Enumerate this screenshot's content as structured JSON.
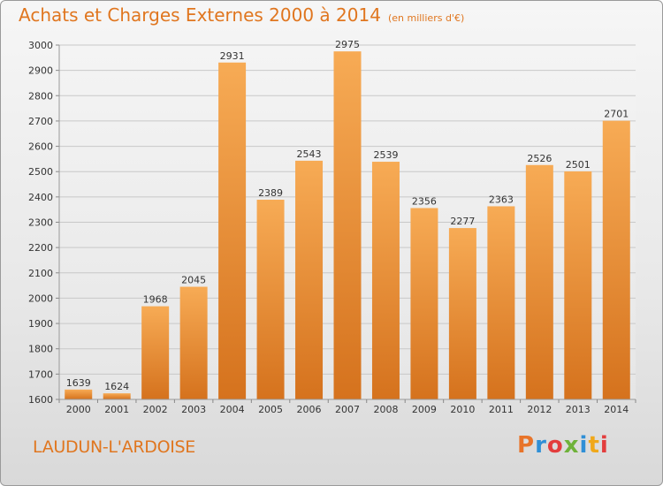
{
  "header": {
    "title": "Achats et Charges Externes 2000 à 2014",
    "subtitle": "(en milliers d'€)"
  },
  "footer": {
    "city": "LAUDUN-L'ARDOISE",
    "brand": "Proxiti",
    "brand_colors": [
      "#e8742a",
      "#2f8fd6",
      "#e33d3d",
      "#6fb23a",
      "#2f8fd6",
      "#f0a81a",
      "#e33d3d"
    ]
  },
  "colors": {
    "accent": "#e0761f",
    "bar_light": "#f5a54f",
    "bar_dark": "#d8751f",
    "grid": "#c8c8c8"
  },
  "chart_data": {
    "type": "bar",
    "title": "Achats et Charges Externes 2000 à 2014",
    "subtitle": "(en milliers d'€)",
    "categories": [
      "2000",
      "2001",
      "2002",
      "2003",
      "2004",
      "2005",
      "2006",
      "2007",
      "2008",
      "2009",
      "2010",
      "2011",
      "2012",
      "2013",
      "2014"
    ],
    "values": [
      1639,
      1624,
      1968,
      2045,
      2931,
      2389,
      2543,
      2975,
      2539,
      2356,
      2277,
      2363,
      2526,
      2501,
      2701
    ],
    "ylim": [
      1600,
      3000
    ],
    "yticks": [
      1600,
      1700,
      1800,
      1900,
      2000,
      2100,
      2200,
      2300,
      2400,
      2500,
      2600,
      2700,
      2800,
      2900,
      3000
    ],
    "xlabel": "",
    "ylabel": "",
    "grid": true,
    "legend": "none"
  }
}
